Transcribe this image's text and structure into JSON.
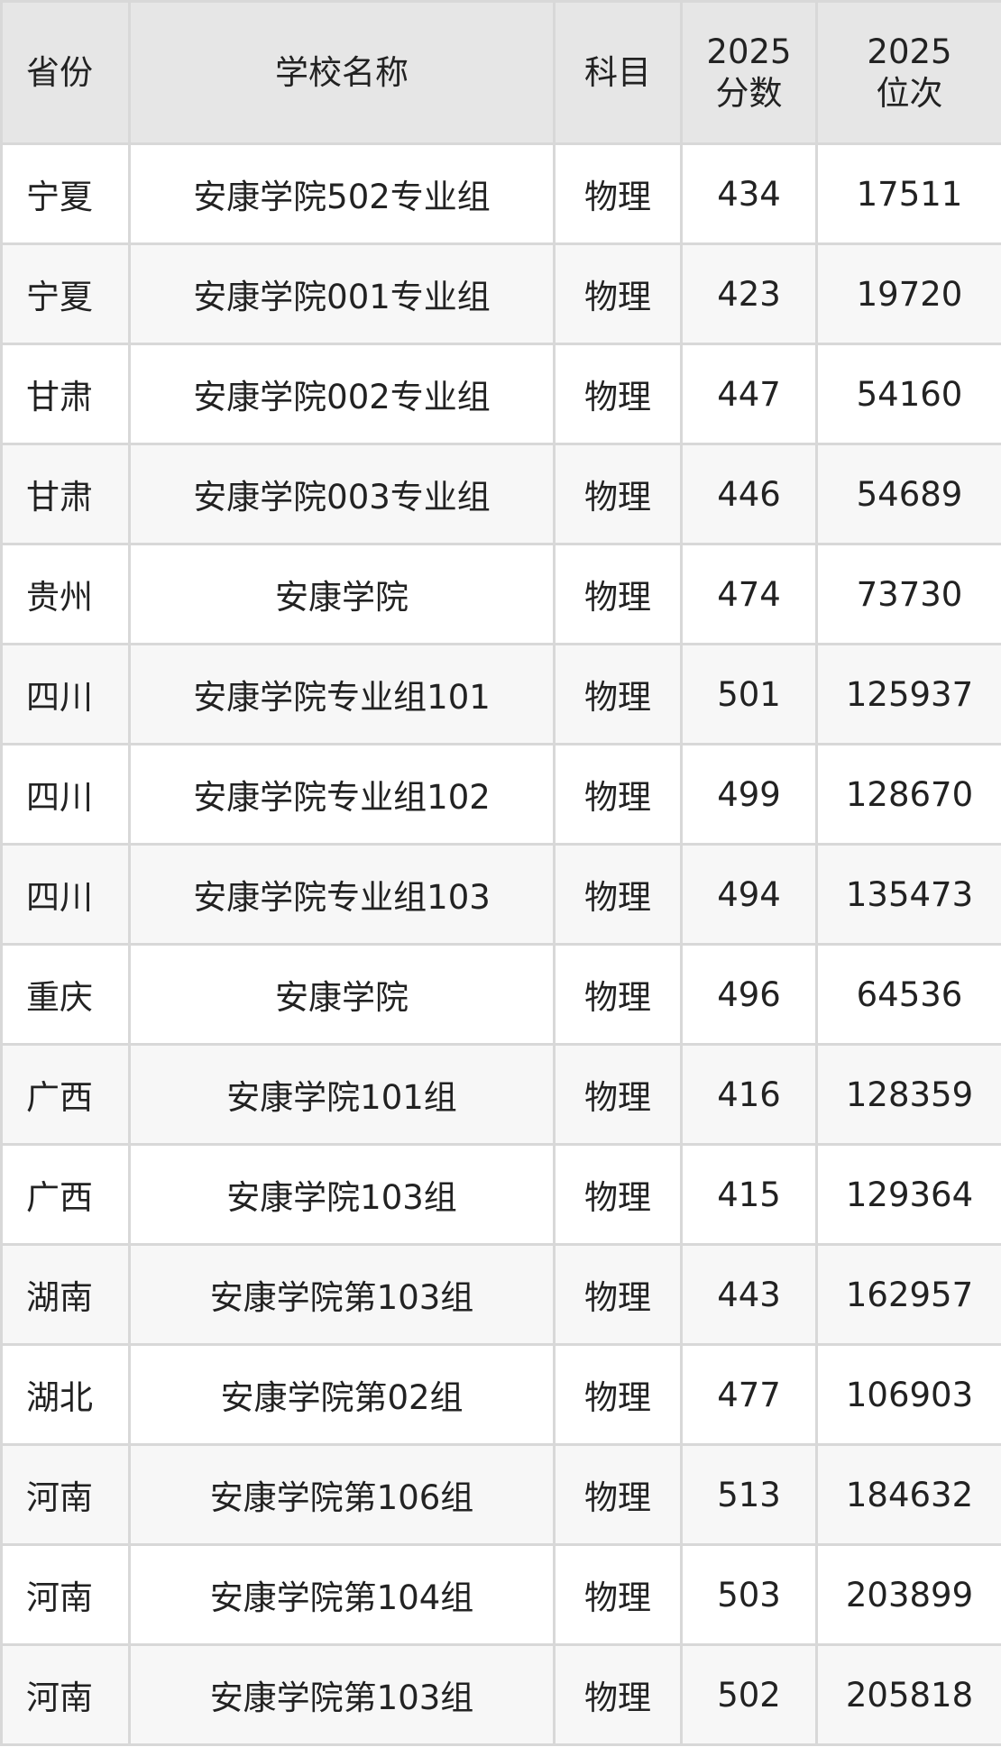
{
  "table": {
    "headers": [
      "省份",
      "学校名称",
      "科目",
      "2025\n分数",
      "2025\n位次"
    ],
    "header_lines": [
      [
        "省份"
      ],
      [
        "学校名称"
      ],
      [
        "科目"
      ],
      [
        "2025",
        "分数"
      ],
      [
        "2025",
        "位次"
      ]
    ],
    "rows": [
      [
        "宁夏",
        "安康学院502专业组",
        "物理",
        "434",
        "17511"
      ],
      [
        "宁夏",
        "安康学院001专业组",
        "物理",
        "423",
        "19720"
      ],
      [
        "甘肃",
        "安康学院002专业组",
        "物理",
        "447",
        "54160"
      ],
      [
        "甘肃",
        "安康学院003专业组",
        "物理",
        "446",
        "54689"
      ],
      [
        "贵州",
        "安康学院",
        "物理",
        "474",
        "73730"
      ],
      [
        "四川",
        "安康学院专业组101",
        "物理",
        "501",
        "125937"
      ],
      [
        "四川",
        "安康学院专业组102",
        "物理",
        "499",
        "128670"
      ],
      [
        "四川",
        "安康学院专业组103",
        "物理",
        "494",
        "135473"
      ],
      [
        "重庆",
        "安康学院",
        "物理",
        "496",
        "64536"
      ],
      [
        "广西",
        "安康学院101组",
        "物理",
        "416",
        "128359"
      ],
      [
        "广西",
        "安康学院103组",
        "物理",
        "415",
        "129364"
      ],
      [
        "湖南",
        "安康学院第103组",
        "物理",
        "443",
        "162957"
      ],
      [
        "湖北",
        "安康学院第02组",
        "物理",
        "477",
        "106903"
      ],
      [
        "河南",
        "安康学院第106组",
        "物理",
        "513",
        "184632"
      ],
      [
        "河南",
        "安康学院第104组",
        "物理",
        "503",
        "203899"
      ],
      [
        "河南",
        "安康学院第103组",
        "物理",
        "502",
        "205818"
      ]
    ]
  },
  "colors": {
    "header_bg": "#e6e6e6",
    "alt_row_bg": "#f7f7f7",
    "border": "#d8d8d8"
  }
}
